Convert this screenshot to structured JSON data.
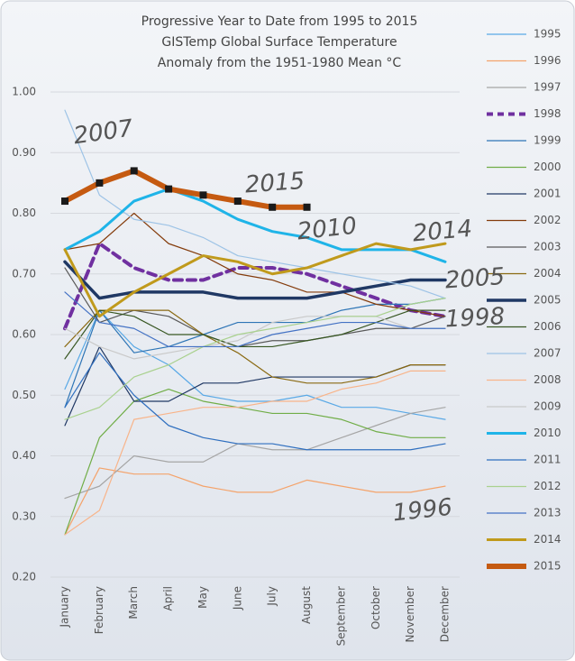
{
  "chart_data": {
    "type": "line",
    "title": [
      "Progressive Year to Date from 1995 to 2015",
      "GISTemp Global Surface Temperature",
      "Anomaly from the 1951-1980 Mean °C"
    ],
    "categories": [
      "January",
      "February",
      "March",
      "April",
      "May",
      "June",
      "July",
      "August",
      "September",
      "October",
      "November",
      "December"
    ],
    "ylim": [
      0.2,
      1.0
    ],
    "yticks": [
      {
        "value": 0.2,
        "label": "0.20"
      },
      {
        "value": 0.3,
        "label": "0.30"
      },
      {
        "value": 0.4,
        "label": "0.40"
      },
      {
        "value": 0.5,
        "label": "0.50"
      },
      {
        "value": 0.6,
        "label": "0.60"
      },
      {
        "value": 0.7,
        "label": "0.70"
      },
      {
        "value": 0.8,
        "label": "0.80"
      },
      {
        "value": 0.9,
        "label": "0.90"
      },
      {
        "value": 1.0,
        "label": "1.00"
      }
    ],
    "grid": true,
    "legend": "right",
    "series": [
      {
        "name": "1995",
        "color": "#5aa9e6",
        "width": 1.2,
        "values": [
          0.51,
          0.64,
          0.58,
          0.55,
          0.5,
          0.49,
          0.49,
          0.5,
          0.48,
          0.48,
          0.47,
          0.46
        ]
      },
      {
        "name": "1996",
        "color": "#f4a36b",
        "width": 1.2,
        "values": [
          0.27,
          0.38,
          0.37,
          0.37,
          0.35,
          0.34,
          0.34,
          0.36,
          0.35,
          0.34,
          0.34,
          0.35
        ]
      },
      {
        "name": "1997",
        "color": "#a5a5a5",
        "width": 1.2,
        "values": [
          0.33,
          0.35,
          0.4,
          0.39,
          0.39,
          0.42,
          0.41,
          0.41,
          0.43,
          0.45,
          0.47,
          0.48
        ]
      },
      {
        "name": "1998",
        "color": "#7030a0",
        "width": 4,
        "dash": "9 6",
        "values": [
          0.61,
          0.75,
          0.71,
          0.69,
          0.69,
          0.71,
          0.71,
          0.7,
          0.68,
          0.66,
          0.64,
          0.63
        ]
      },
      {
        "name": "1999",
        "color": "#2e75b6",
        "width": 1.2,
        "values": [
          0.48,
          0.64,
          0.57,
          0.58,
          0.6,
          0.62,
          0.62,
          0.62,
          0.64,
          0.65,
          0.65,
          0.66
        ]
      },
      {
        "name": "2000",
        "color": "#70ad47",
        "width": 1.2,
        "values": [
          0.27,
          0.43,
          0.49,
          0.51,
          0.49,
          0.48,
          0.47,
          0.47,
          0.46,
          0.44,
          0.43,
          0.43
        ]
      },
      {
        "name": "2001",
        "color": "#203864",
        "width": 1.2,
        "values": [
          0.45,
          0.58,
          0.49,
          0.49,
          0.52,
          0.52,
          0.53,
          0.53,
          0.53,
          0.53,
          0.55,
          0.55
        ]
      },
      {
        "name": "2002",
        "color": "#843c0c",
        "width": 1.2,
        "values": [
          0.74,
          0.75,
          0.8,
          0.75,
          0.73,
          0.7,
          0.69,
          0.67,
          0.67,
          0.65,
          0.64,
          0.63
        ]
      },
      {
        "name": "2003",
        "color": "#595959",
        "width": 1.2,
        "values": [
          0.71,
          0.62,
          0.64,
          0.63,
          0.6,
          0.58,
          0.59,
          0.59,
          0.6,
          0.61,
          0.61,
          0.63
        ]
      },
      {
        "name": "2004",
        "color": "#8a6a12",
        "width": 1.2,
        "values": [
          0.58,
          0.64,
          0.64,
          0.64,
          0.6,
          0.57,
          0.53,
          0.52,
          0.52,
          0.53,
          0.55,
          0.55
        ]
      },
      {
        "name": "2005",
        "color": "#1f3864",
        "width": 3.5,
        "values": [
          0.72,
          0.66,
          0.67,
          0.67,
          0.67,
          0.66,
          0.66,
          0.66,
          0.67,
          0.68,
          0.69,
          0.69
        ]
      },
      {
        "name": "2006",
        "color": "#385723",
        "width": 1.2,
        "values": [
          0.56,
          0.64,
          0.63,
          0.6,
          0.6,
          0.58,
          0.58,
          0.59,
          0.6,
          0.62,
          0.64,
          0.64
        ]
      },
      {
        "name": "2007",
        "color": "#9dc3e6",
        "width": 1.2,
        "values": [
          0.97,
          0.83,
          0.79,
          0.78,
          0.76,
          0.73,
          0.72,
          0.71,
          0.7,
          0.69,
          0.68,
          0.66
        ]
      },
      {
        "name": "2008",
        "color": "#f8b48a",
        "width": 1.2,
        "values": [
          0.27,
          0.31,
          0.46,
          0.47,
          0.48,
          0.48,
          0.49,
          0.49,
          0.51,
          0.52,
          0.54,
          0.54
        ]
      },
      {
        "name": "2009",
        "color": "#c9c9c9",
        "width": 1.2,
        "values": [
          0.61,
          0.58,
          0.56,
          0.57,
          0.58,
          0.59,
          0.62,
          0.63,
          0.63,
          0.63,
          0.61,
          0.61
        ]
      },
      {
        "name": "2010",
        "color": "#1fb4e8",
        "width": 3,
        "values": [
          0.74,
          0.77,
          0.82,
          0.84,
          0.82,
          0.79,
          0.77,
          0.76,
          0.74,
          0.74,
          0.74,
          0.72
        ]
      },
      {
        "name": "2011",
        "color": "#2f6fbf",
        "width": 1.2,
        "values": [
          0.48,
          0.57,
          0.5,
          0.45,
          0.43,
          0.42,
          0.42,
          0.41,
          0.41,
          0.41,
          0.41,
          0.42
        ]
      },
      {
        "name": "2012",
        "color": "#a9d18e",
        "width": 1.2,
        "values": [
          0.46,
          0.48,
          0.53,
          0.55,
          0.58,
          0.6,
          0.61,
          0.62,
          0.63,
          0.63,
          0.65,
          0.66
        ]
      },
      {
        "name": "2013",
        "color": "#4472c4",
        "width": 1.2,
        "values": [
          0.67,
          0.62,
          0.61,
          0.58,
          0.58,
          0.58,
          0.6,
          0.61,
          0.62,
          0.62,
          0.61,
          0.61
        ]
      },
      {
        "name": "2014",
        "color": "#c09a1c",
        "width": 3,
        "values": [
          0.74,
          0.63,
          0.67,
          0.7,
          0.73,
          0.72,
          0.7,
          0.71,
          0.73,
          0.75,
          0.74,
          0.75
        ]
      },
      {
        "name": "2015",
        "color": "#c55a11",
        "width": 6,
        "marker": "square",
        "marker_color": "#1a1a1a",
        "values": [
          0.82,
          0.85,
          0.87,
          0.84,
          0.83,
          0.82,
          0.81,
          0.81,
          null,
          null,
          null,
          null
        ]
      }
    ],
    "annotations": [
      {
        "text": "2007",
        "color": "#9dc3e6"
      },
      {
        "text": "2015",
        "color": "#c55a11"
      },
      {
        "text": "2010",
        "color": "#1fb4e8"
      },
      {
        "text": "2014",
        "color": "#c09a1c"
      },
      {
        "text": "2005",
        "color": "#1f3864"
      },
      {
        "text": "1998",
        "color": "#7030a0"
      },
      {
        "text": "1996",
        "color": "#f8b48a"
      }
    ]
  }
}
